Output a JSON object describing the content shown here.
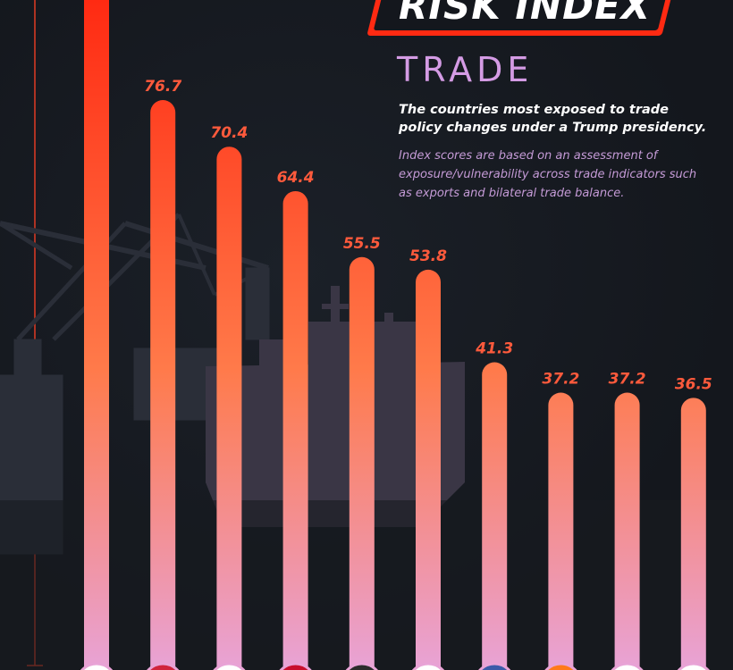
{
  "title": "RISK INDEX",
  "subtitle": "TRADE",
  "lead": "The countries most exposed to trade policy changes under a Trump presidency.",
  "note": "Index scores are based on an assessment of exposure/vulnerability across trade indicators such as exports and bilateral trade balance.",
  "colors": {
    "background": "#14171d",
    "bar_top": "#ff2a12",
    "bar_bottom": "#e8a3d6",
    "label": "#ff5a3c",
    "accent": "#d49be4"
  },
  "chart_data": {
    "type": "bar",
    "orientation": "vertical",
    "title": "RISK INDEX",
    "subtitle": "TRADE",
    "categories": [
      "",
      "",
      "",
      "",
      "",
      "",
      "",
      "",
      "",
      ""
    ],
    "values": [
      null,
      76.7,
      70.4,
      64.4,
      55.5,
      53.8,
      41.3,
      37.2,
      37.2,
      36.5
    ],
    "value_labels": [
      "",
      "76.7",
      "70.4",
      "64.4",
      "55.5",
      "53.8",
      "41.3",
      "37.2",
      "37.2",
      "36.5"
    ],
    "ylim": [
      0,
      100
    ],
    "grid": false,
    "legend": "none"
  }
}
